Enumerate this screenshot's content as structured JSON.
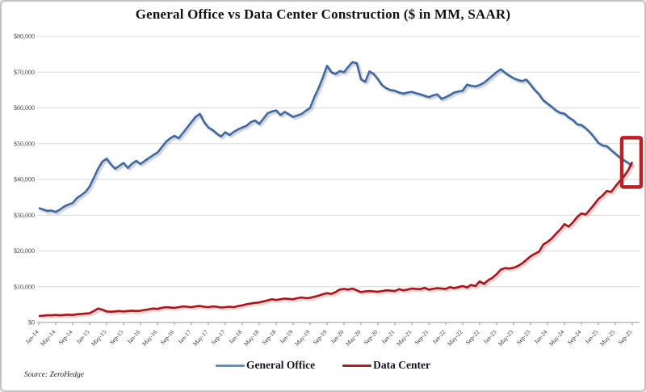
{
  "title": "General Office vs Data Center Construction ($ in MM, SAAR)",
  "source": "Source: ZeroHedge",
  "legend": [
    {
      "label": "General Office",
      "color": "#6b8cb8"
    },
    {
      "label": "Data Center",
      "color": "#9c2730"
    }
  ],
  "chart_data": {
    "type": "line",
    "title": "General Office vs Data Center Construction ($ in MM, SAAR)",
    "xlabel": "",
    "ylabel": "",
    "ylim": [
      0,
      80000
    ],
    "grid": "horizontal",
    "legend_position": "bottom-center",
    "y_tick_labels": [
      "$0",
      "$10,000",
      "$20,000",
      "$30,000",
      "$40,000",
      "$50,000",
      "$60,000",
      "$70,000",
      "$80,000"
    ],
    "x_start": "Jan-14",
    "x_end": "Sep-25",
    "x_frequency": "monthly",
    "x_tick_every_n_months": 4,
    "x_tick_labels": [
      "Jan-14",
      "May-14",
      "Sep-14",
      "Jan-15",
      "May-15",
      "Sep-15",
      "Jan-16",
      "May-16",
      "Sep-16",
      "Jan-17",
      "May-17",
      "Sep-17",
      "Jan-18",
      "May-18",
      "Sep-18",
      "Jan-19",
      "May-19",
      "Sep-19",
      "Jan-20",
      "May-20",
      "Sep-20",
      "Jan-21",
      "May-21",
      "Sep-21",
      "Jan-22",
      "May-22",
      "Sep-22",
      "Jan-23",
      "May-23",
      "Sep-23",
      "Jan-24",
      "May-24",
      "Sep-24",
      "Jan-25",
      "May-25",
      "Sep-25"
    ],
    "series": [
      {
        "name": "General Office",
        "color": "#44679b",
        "values": [
          32000,
          31600,
          31200,
          31300,
          30900,
          31600,
          32400,
          33000,
          33400,
          34800,
          35600,
          36500,
          38000,
          40500,
          43000,
          45000,
          45800,
          44200,
          43000,
          43800,
          44600,
          43200,
          44400,
          45200,
          44300,
          45200,
          46000,
          46800,
          47500,
          49000,
          50500,
          51500,
          52200,
          51500,
          53000,
          54500,
          56000,
          57500,
          58300,
          56000,
          54500,
          53800,
          52800,
          52000,
          53200,
          52400,
          53300,
          54000,
          54500,
          55000,
          56000,
          56500,
          55500,
          57000,
          58500,
          59000,
          59300,
          58000,
          58900,
          58200,
          57500,
          57900,
          58300,
          59200,
          60000,
          63000,
          65500,
          68500,
          71800,
          70000,
          69500,
          70300,
          70000,
          71500,
          72800,
          72500,
          68000,
          67300,
          70200,
          69500,
          68000,
          66300,
          65500,
          65000,
          64800,
          64300,
          64000,
          64300,
          64500,
          64100,
          63800,
          63400,
          63000,
          63500,
          63800,
          62500,
          63000,
          63600,
          64300,
          64600,
          64800,
          66500,
          66200,
          66000,
          66400,
          67000,
          68000,
          69000,
          70000,
          70800,
          69800,
          69000,
          68300,
          67800,
          67500,
          67900,
          66500,
          65000,
          63800,
          62100,
          61200,
          60300,
          59300,
          58600,
          58400,
          57300,
          56600,
          55400,
          55200,
          54300,
          53200,
          51800,
          50200,
          49500,
          49300,
          48200,
          47200,
          46200,
          45400,
          44600,
          43800
        ]
      },
      {
        "name": "Data Center",
        "color": "#9a1b22",
        "values": [
          1800,
          1900,
          2000,
          2000,
          2100,
          2000,
          2100,
          2200,
          2100,
          2300,
          2400,
          2500,
          2600,
          3200,
          3900,
          3600,
          3100,
          3000,
          3100,
          3200,
          3100,
          3200,
          3300,
          3200,
          3300,
          3500,
          3700,
          3900,
          3800,
          4100,
          4300,
          4200,
          4100,
          4300,
          4500,
          4400,
          4300,
          4500,
          4600,
          4400,
          4300,
          4500,
          4400,
          4200,
          4300,
          4400,
          4300,
          4600,
          4800,
          5100,
          5300,
          5500,
          5600,
          5900,
          6200,
          6500,
          6300,
          6500,
          6700,
          6600,
          6500,
          6800,
          7000,
          6800,
          6900,
          7200,
          7500,
          7900,
          8200,
          8000,
          8500,
          9200,
          9400,
          9200,
          9500,
          9000,
          8500,
          8700,
          8800,
          8700,
          8600,
          8800,
          9000,
          8900,
          8800,
          9300,
          9000,
          9200,
          9500,
          9400,
          9300,
          9700,
          9200,
          9400,
          9600,
          9500,
          9400,
          9900,
          9600,
          9900,
          10200,
          9800,
          10500,
          10200,
          11500,
          10800,
          11800,
          12500,
          13500,
          14800,
          15200,
          15100,
          15300,
          15800,
          16500,
          17500,
          18500,
          19200,
          19800,
          21800,
          22500,
          23500,
          24800,
          26000,
          27500,
          26800,
          28000,
          29500,
          30500,
          30200,
          31500,
          33000,
          34500,
          35500,
          36800,
          36500,
          38000,
          39500,
          40800,
          42500,
          44900
        ]
      }
    ],
    "annotations": [
      {
        "type": "highlight-box",
        "color": "#b42328",
        "note": "crossover of Data Center above General Office at series end"
      }
    ]
  }
}
